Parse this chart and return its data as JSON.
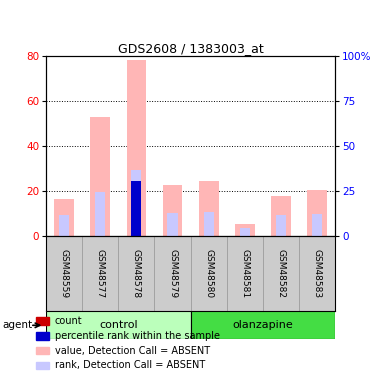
{
  "title": "GDS2608 / 1383003_at",
  "samples": [
    "GSM48559",
    "GSM48577",
    "GSM48578",
    "GSM48579",
    "GSM48580",
    "GSM48581",
    "GSM48582",
    "GSM48583"
  ],
  "value_absent": [
    16.5,
    53.0,
    78.5,
    23.0,
    24.5,
    5.5,
    18.0,
    20.5
  ],
  "rank_absent": [
    9.5,
    19.5,
    29.5,
    10.5,
    11.0,
    3.5,
    9.5,
    10.0
  ],
  "rank_percentile": [
    0,
    0,
    24.5,
    0,
    0,
    0,
    0,
    0
  ],
  "ylim_left": [
    0,
    80
  ],
  "ylim_right": [
    0,
    100
  ],
  "yticks_left": [
    0,
    20,
    40,
    60,
    80
  ],
  "yticks_right": [
    0,
    25,
    50,
    75,
    100
  ],
  "bar_width": 0.55,
  "rank_bar_width": 0.28,
  "color_value_absent": "#FFB6B6",
  "color_rank_absent": "#C8C8FF",
  "color_count": "#CC0000",
  "color_rank": "#0000CC",
  "control_bg": "#BBFFBB",
  "olanzapine_bg": "#44DD44",
  "sample_box_bg": "#CCCCCC",
  "legend_items": [
    {
      "label": "count",
      "color": "#CC0000"
    },
    {
      "label": "percentile rank within the sample",
      "color": "#0000CC"
    },
    {
      "label": "value, Detection Call = ABSENT",
      "color": "#FFB6B6"
    },
    {
      "label": "rank, Detection Call = ABSENT",
      "color": "#C8C8FF"
    }
  ]
}
